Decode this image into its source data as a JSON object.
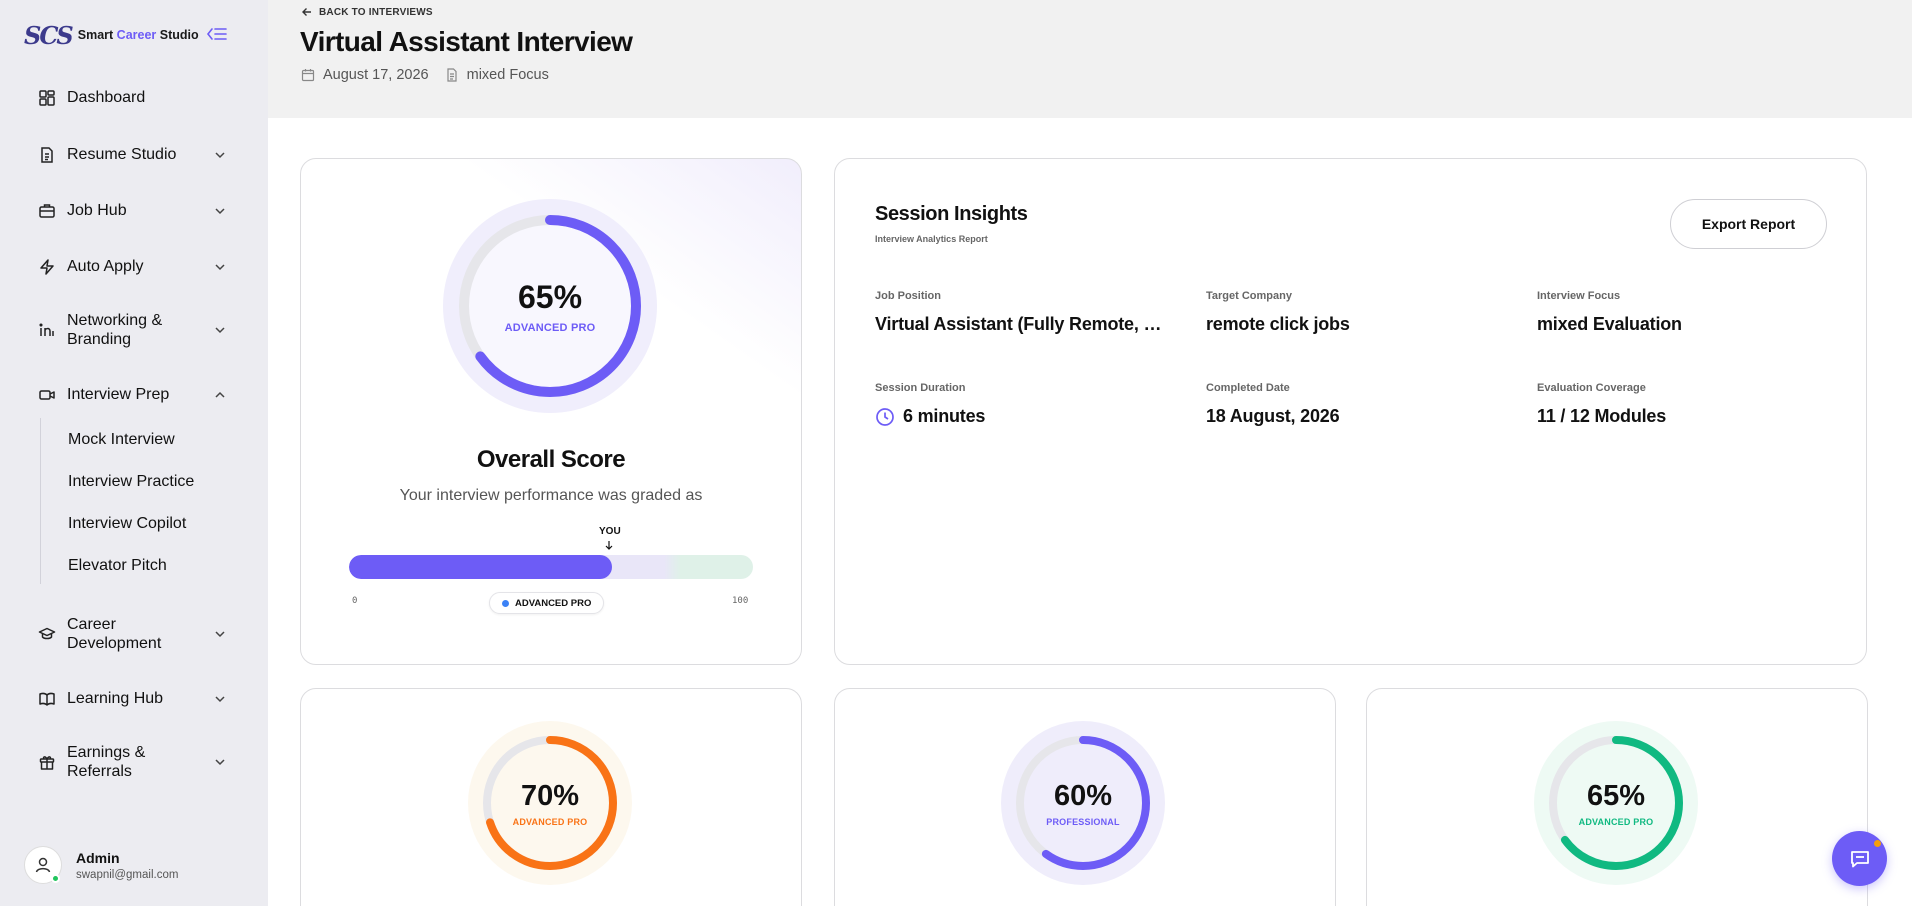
{
  "brand": {
    "mark": "SCS",
    "name_part1": "Smart ",
    "name_part2": "Career",
    "name_part3": " Studio"
  },
  "sidebar": {
    "items": [
      {
        "label": "Dashboard",
        "icon": "grid-icon"
      },
      {
        "label": "Resume Studio",
        "icon": "document-icon"
      },
      {
        "label": "Job Hub",
        "icon": "briefcase-icon"
      },
      {
        "label": "Auto Apply",
        "icon": "lightning-icon"
      },
      {
        "label": "Networking & Branding",
        "icon": "linkedin-icon"
      },
      {
        "label": "Interview Prep",
        "icon": "video-icon"
      },
      {
        "label": "Career Development",
        "icon": "graduation-cap-icon"
      },
      {
        "label": "Learning Hub",
        "icon": "book-icon"
      },
      {
        "label": "Earnings & Referrals",
        "icon": "gift-icon"
      }
    ],
    "sub_items": [
      "Mock Interview",
      "Interview Practice",
      "Interview Copilot",
      "Elevator Pitch"
    ]
  },
  "user": {
    "name": "Admin",
    "email": "swapnil@gmail.com"
  },
  "header": {
    "back_label": "BACK TO INTERVIEWS",
    "title": "Virtual Assistant Interview",
    "date": "August 17, 2026",
    "focus": "mixed Focus"
  },
  "overall": {
    "percent": 65,
    "percent_label": "65%",
    "level": "ADVANCED PRO",
    "title": "Overall Score",
    "subtitle": "Your interview performance was graded as",
    "you_label": "YOU",
    "bar_min": "0",
    "bar_max": "100",
    "pill_label": "ADVANCED PRO"
  },
  "insights": {
    "title": "Session Insights",
    "subtitle": "Interview Analytics Report",
    "export_label": "Export Report",
    "fields": [
      {
        "label": "Job Position",
        "value": "Virtual Assistant (Fully Remote, Flexible Hours)"
      },
      {
        "label": "Target Company",
        "value": "remote click jobs"
      },
      {
        "label": "Interview Focus",
        "value": "mixed Evaluation"
      },
      {
        "label": "Session Duration",
        "value": "6 minutes"
      },
      {
        "label": "Completed Date",
        "value": "18 August, 2026"
      },
      {
        "label": "Evaluation Coverage",
        "value": "11 / 12 Modules"
      }
    ]
  },
  "mini_scores": [
    {
      "percent": 70,
      "percent_label": "70%",
      "level": "ADVANCED PRO",
      "color": "#f97316"
    },
    {
      "percent": 60,
      "percent_label": "60%",
      "level": "PROFESSIONAL",
      "color": "#6d5cf6"
    },
    {
      "percent": 65,
      "percent_label": "65%",
      "level": "ADVANCED PRO",
      "color": "#10b981"
    }
  ],
  "colors": {
    "accent": "#6d5cf6",
    "online": "#22c55e"
  }
}
